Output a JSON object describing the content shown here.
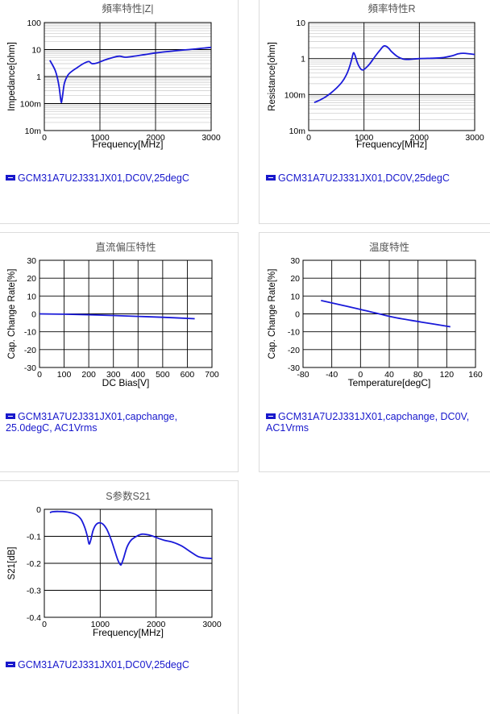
{
  "chart_data": [
    {
      "id": "z",
      "type": "line",
      "title": "頻率特性|Z|",
      "xlabel": "Frequency[MHz]",
      "ylabel": "Impedance[ohm]",
      "x_scale": "linear",
      "y_scale": "log",
      "xlim": [
        0,
        3000
      ],
      "ylim": [
        0.01,
        100
      ],
      "x_ticks": [
        0,
        1000,
        2000,
        3000
      ],
      "x_tick_labels": [
        "0",
        "1000",
        "2000",
        "3000"
      ],
      "y_ticks": [
        100,
        10,
        1,
        0.1,
        0.01
      ],
      "y_tick_labels": [
        "100",
        "10",
        "1",
        "100m",
        "10m"
      ],
      "grid": true,
      "legend_position": "bottom",
      "series": [
        {
          "name": "GCM31A7U2J331JX01,DC0V,25degC",
          "x": [
            100,
            200,
            260,
            300,
            320,
            360,
            420,
            500,
            600,
            700,
            800,
            860,
            950,
            1100,
            1250,
            1350,
            1450,
            1600,
            1800,
            2000,
            2300,
            2600,
            2800,
            3000
          ],
          "y": [
            4.0,
            1.6,
            0.5,
            0.12,
            0.15,
            0.55,
            1.1,
            1.6,
            2.2,
            3.0,
            3.6,
            3.0,
            3.2,
            4.2,
            5.2,
            5.7,
            5.2,
            5.6,
            6.5,
            7.5,
            8.8,
            10.0,
            11.0,
            12.0
          ]
        }
      ]
    },
    {
      "id": "r",
      "type": "line",
      "title": "頻率特性R",
      "xlabel": "Frequency[MHz]",
      "ylabel": "Resistance[ohm]",
      "x_scale": "linear",
      "y_scale": "log",
      "xlim": [
        0,
        3000
      ],
      "ylim": [
        0.01,
        10
      ],
      "x_ticks": [
        0,
        1000,
        2000,
        3000
      ],
      "x_tick_labels": [
        "0",
        "1000",
        "2000",
        "3000"
      ],
      "y_ticks": [
        10,
        1,
        0.1,
        0.01
      ],
      "y_tick_labels": [
        "10",
        "1",
        "100m",
        "10m"
      ],
      "grid": true,
      "legend_position": "bottom",
      "series": [
        {
          "name": "GCM31A7U2J331JX01,DC0V,25degC",
          "x": [
            100,
            200,
            300,
            400,
            500,
            600,
            680,
            740,
            780,
            810,
            840,
            870,
            900,
            950,
            1000,
            1100,
            1200,
            1300,
            1350,
            1400,
            1450,
            1500,
            1600,
            1700,
            1800,
            2000,
            2200,
            2400,
            2600,
            2700,
            2800,
            3000
          ],
          "y": [
            0.06,
            0.07,
            0.085,
            0.11,
            0.15,
            0.22,
            0.35,
            0.6,
            1.0,
            1.45,
            1.2,
            0.85,
            0.65,
            0.5,
            0.5,
            0.7,
            1.15,
            1.8,
            2.2,
            2.2,
            1.9,
            1.55,
            1.15,
            0.98,
            0.95,
            1.0,
            1.02,
            1.05,
            1.2,
            1.35,
            1.4,
            1.3
          ]
        }
      ]
    },
    {
      "id": "bias",
      "type": "line",
      "title": "直流偏压特性",
      "xlabel": "DC Bias[V]",
      "ylabel": "Cap. Change Rate[%]",
      "x_scale": "linear",
      "y_scale": "linear",
      "xlim": [
        0,
        700
      ],
      "ylim": [
        -30,
        30
      ],
      "x_ticks": [
        0,
        100,
        200,
        300,
        400,
        500,
        600,
        700
      ],
      "x_tick_labels": [
        "0",
        "100",
        "200",
        "300",
        "400",
        "500",
        "600",
        "700"
      ],
      "y_ticks": [
        30,
        20,
        10,
        0,
        -10,
        -20,
        -30
      ],
      "y_tick_labels": [
        "30",
        "20",
        "10",
        "0",
        "-10",
        "-20",
        "-30"
      ],
      "grid": true,
      "legend_position": "bottom",
      "series": [
        {
          "name": "GCM31A7U2J331JX01,capchange,\n25.0degC, AC1Vrms",
          "x": [
            0,
            100,
            200,
            300,
            400,
            500,
            630
          ],
          "y": [
            0,
            -0.2,
            -0.5,
            -0.9,
            -1.4,
            -1.9,
            -2.7
          ]
        }
      ]
    },
    {
      "id": "temp",
      "type": "line",
      "title": "温度特性",
      "xlabel": "Temperature[degC]",
      "ylabel": "Cap. Change Rate[%]",
      "x_scale": "linear",
      "y_scale": "linear",
      "xlim": [
        -80,
        160
      ],
      "ylim": [
        -30,
        30
      ],
      "x_ticks": [
        -80,
        -40,
        0,
        40,
        80,
        120,
        160
      ],
      "x_tick_labels": [
        "-80",
        "-40",
        "0",
        "40",
        "80",
        "120",
        "160"
      ],
      "y_ticks": [
        30,
        20,
        10,
        0,
        -10,
        -20,
        -30
      ],
      "y_tick_labels": [
        "30",
        "20",
        "10",
        "0",
        "-10",
        "-20",
        "-30"
      ],
      "grid": true,
      "legend_position": "bottom",
      "series": [
        {
          "name": "GCM31A7U2J331JX01,capchange, DC0V,\nAC1Vrms",
          "x": [
            -55,
            -25,
            0,
            25,
            50,
            85,
            125
          ],
          "y": [
            7.5,
            4.8,
            2.5,
            0.1,
            -2.2,
            -4.6,
            -7.2
          ]
        }
      ]
    },
    {
      "id": "s21",
      "type": "line",
      "title": "S参数S21",
      "xlabel": "Frequency[MHz]",
      "ylabel": "S21[dB]",
      "x_scale": "linear",
      "y_scale": "linear",
      "xlim": [
        0,
        3000
      ],
      "ylim": [
        -0.4,
        0
      ],
      "x_ticks": [
        0,
        1000,
        2000,
        3000
      ],
      "x_tick_labels": [
        "0",
        "1000",
        "2000",
        "3000"
      ],
      "y_ticks": [
        0,
        -0.1,
        -0.2,
        -0.3,
        -0.4
      ],
      "y_tick_labels": [
        "0",
        "-0.1",
        "-0.2",
        "-0.3",
        "-0.4"
      ],
      "grid": true,
      "legend_position": "bottom",
      "series": [
        {
          "name": "GCM31A7U2J331JX01,DC0V,25degC",
          "x": [
            100,
            150,
            250,
            400,
            550,
            650,
            720,
            770,
            800,
            830,
            870,
            920,
            980,
            1050,
            1120,
            1200,
            1270,
            1320,
            1360,
            1380,
            1420,
            1480,
            1550,
            1650,
            1750,
            1850,
            1950,
            2050,
            2150,
            2300,
            2450,
            2550,
            2650,
            2750,
            2850,
            3000
          ],
          "y": [
            -0.012,
            -0.009,
            -0.008,
            -0.01,
            -0.018,
            -0.035,
            -0.065,
            -0.1,
            -0.128,
            -0.115,
            -0.08,
            -0.058,
            -0.05,
            -0.055,
            -0.075,
            -0.115,
            -0.16,
            -0.19,
            -0.205,
            -0.203,
            -0.18,
            -0.14,
            -0.115,
            -0.1,
            -0.092,
            -0.094,
            -0.1,
            -0.108,
            -0.115,
            -0.122,
            -0.135,
            -0.148,
            -0.162,
            -0.175,
            -0.18,
            -0.182
          ]
        }
      ]
    }
  ],
  "colors": {
    "line": "#1a1ad9",
    "legend_text": "#1818cc",
    "grid": "#c8c8c8",
    "major_grid": "#000000",
    "title_text": "#555555"
  }
}
